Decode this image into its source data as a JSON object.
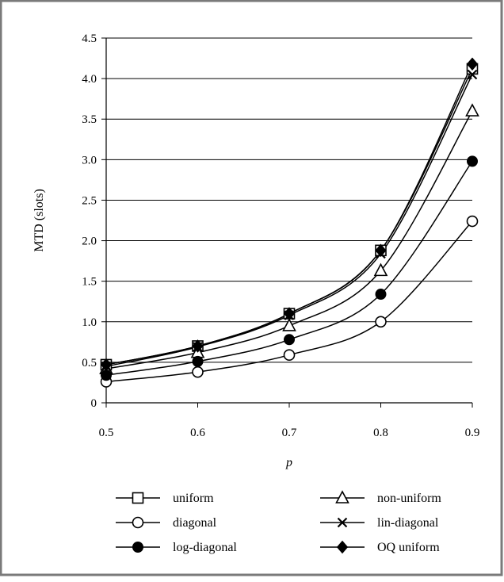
{
  "chart_data": {
    "type": "line",
    "title": "",
    "xlabel": "p",
    "ylabel": "MTD (slots)",
    "x": [
      0.5,
      0.6,
      0.7,
      0.8,
      0.9
    ],
    "x_tick_labels": [
      "0.5",
      "0.6",
      "0.7",
      "0.8",
      "0.9"
    ],
    "xlim": [
      0.5,
      0.9
    ],
    "ylim": [
      0,
      4.5
    ],
    "y_ticks": [
      0,
      0.5,
      1.0,
      1.5,
      2.0,
      2.5,
      3.0,
      3.5,
      4.0,
      4.5
    ],
    "y_tick_labels": [
      "0",
      "0.5",
      "1.0",
      "1.5",
      "2.0",
      "2.5",
      "3.0",
      "3.5",
      "4.0",
      "4.5"
    ],
    "grid": "horizontal",
    "legend_position": "bottom",
    "series": [
      {
        "name": "uniform",
        "marker": "square-open",
        "values": [
          0.47,
          0.7,
          1.1,
          1.88,
          4.12
        ]
      },
      {
        "name": "non-uniform",
        "marker": "triangle-open",
        "values": [
          0.42,
          0.62,
          0.95,
          1.63,
          3.6
        ]
      },
      {
        "name": "diagonal",
        "marker": "circle-open",
        "values": [
          0.26,
          0.38,
          0.59,
          1.0,
          2.24
        ]
      },
      {
        "name": "lin-diagonal",
        "marker": "x",
        "values": [
          0.45,
          0.69,
          1.08,
          1.84,
          4.05
        ]
      },
      {
        "name": "log-diagonal",
        "marker": "circle-filled",
        "values": [
          0.34,
          0.51,
          0.78,
          1.34,
          2.98
        ]
      },
      {
        "name": "OQ uniform",
        "marker": "diamond-filled",
        "values": [
          0.47,
          0.7,
          1.1,
          1.88,
          4.18
        ]
      }
    ]
  }
}
